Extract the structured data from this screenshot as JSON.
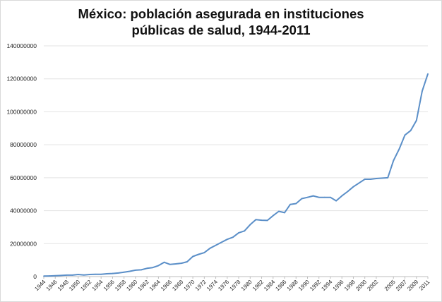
{
  "chart_data": {
    "type": "line",
    "title_lines": [
      "México: población asegurada en instituciones",
      "públicas de salud, 1944-2011"
    ],
    "xlabel": "",
    "ylabel": "",
    "ylim": [
      0,
      140000000
    ],
    "yticks": [
      "0",
      "20000000",
      "40000000",
      "60000000",
      "80000000",
      "100000000",
      "120000000",
      "140000000"
    ],
    "xticks": [
      "1944",
      "1946",
      "1948",
      "1950",
      "1952",
      "1954",
      "1956",
      "1958",
      "1960",
      "1962",
      "1964",
      "1966",
      "1968",
      "1970",
      "1972",
      "1974",
      "1976",
      "1978",
      "1980",
      "1982",
      "1984",
      "1986",
      "1988",
      "1990",
      "1992",
      "1994",
      "1996",
      "1998",
      "2000",
      "2002",
      "2005",
      "2007",
      "2009",
      "2011"
    ],
    "grid": true,
    "line_color": "#5b8fc8",
    "series": [
      {
        "categories": [
          "1944",
          "1945",
          "1946",
          "1947",
          "1948",
          "1949",
          "1950",
          "1951",
          "1952",
          "1953",
          "1954",
          "1955",
          "1956",
          "1957",
          "1958",
          "1959",
          "1960",
          "1961",
          "1962",
          "1963",
          "1964",
          "1965",
          "1966",
          "1967",
          "1968",
          "1969",
          "1970",
          "1971",
          "1972",
          "1973",
          "1974",
          "1975",
          "1976",
          "1977",
          "1978",
          "1979",
          "1980",
          "1981",
          "1982",
          "1983",
          "1984",
          "1985",
          "1986",
          "1987",
          "1988",
          "1989",
          "1990",
          "1991",
          "1992",
          "1993",
          "1994",
          "1995",
          "1996",
          "1997",
          "1998",
          "1999",
          "2000",
          "2001",
          "2002",
          "2004",
          "2005",
          "2006",
          "2007",
          "2008",
          "2009",
          "2010",
          "2011"
        ],
        "values": [
          300000,
          400000,
          500000,
          700000,
          900000,
          900000,
          1300000,
          1000000,
          1300000,
          1400000,
          1400000,
          1700000,
          1900000,
          2200000,
          2700000,
          3200000,
          3900000,
          4100000,
          5000000,
          5500000,
          6700000,
          8700000,
          7400000,
          7700000,
          8100000,
          9000000,
          12200000,
          13500000,
          14500000,
          17200000,
          19000000,
          20800000,
          22600000,
          23900000,
          26600000,
          27700000,
          31500000,
          34600000,
          34200000,
          34100000,
          37000000,
          39600000,
          38800000,
          43800000,
          44300000,
          47300000,
          48100000,
          49000000,
          48100000,
          48100000,
          48100000,
          46000000,
          49000000,
          51600000,
          54500000,
          56800000,
          59100000,
          59100000,
          59500000,
          60000000,
          70400000,
          77400000,
          85900000,
          88600000,
          94700000,
          112500000,
          123000000
        ]
      }
    ]
  }
}
